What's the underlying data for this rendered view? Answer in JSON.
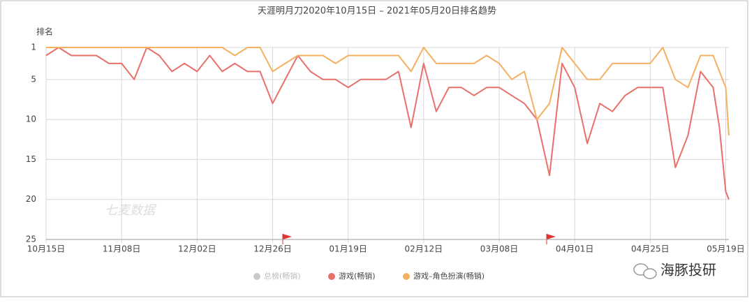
{
  "chart_data": {
    "type": "line",
    "title": "天涯明月刀2020年10月15日 – 2021年05月20日排名趋势",
    "y_label": "排名",
    "watermark": "七麦数据",
    "brand": "海豚投研",
    "x": [
      "2020-10-15",
      "2020-10-19",
      "2020-10-23",
      "2020-10-27",
      "2020-10-31",
      "2020-11-04",
      "2020-11-08",
      "2020-11-12",
      "2020-11-16",
      "2020-11-20",
      "2020-11-24",
      "2020-11-28",
      "2020-12-02",
      "2020-12-06",
      "2020-12-10",
      "2020-12-14",
      "2020-12-18",
      "2020-12-22",
      "2020-12-26",
      "2020-12-30",
      "2021-01-03",
      "2021-01-07",
      "2021-01-11",
      "2021-01-15",
      "2021-01-19",
      "2021-01-23",
      "2021-01-27",
      "2021-01-31",
      "2021-02-04",
      "2021-02-08",
      "2021-02-12",
      "2021-02-16",
      "2021-02-20",
      "2021-02-24",
      "2021-02-28",
      "2021-03-04",
      "2021-03-08",
      "2021-03-12",
      "2021-03-16",
      "2021-03-20",
      "2021-03-24",
      "2021-03-28",
      "2021-04-01",
      "2021-04-05",
      "2021-04-09",
      "2021-04-13",
      "2021-04-17",
      "2021-04-21",
      "2021-04-25",
      "2021-04-29",
      "2021-05-03",
      "2021-05-07",
      "2021-05-11",
      "2021-05-15",
      "2021-05-17",
      "2021-05-19",
      "2021-05-20"
    ],
    "series": [
      {
        "name": "总榜(畅销)",
        "color": "#c8c8c8",
        "visible": false,
        "values": [
          null,
          null,
          null,
          null,
          null,
          null,
          null,
          null,
          null,
          null,
          null,
          null,
          null,
          null,
          null,
          null,
          null,
          null,
          null,
          null,
          null,
          null,
          null,
          null,
          null,
          null,
          null,
          null,
          null,
          null,
          null,
          null,
          null,
          null,
          null,
          null,
          null,
          null,
          null,
          null,
          null,
          null,
          null,
          null,
          null,
          null,
          null,
          null,
          null,
          null,
          null,
          null,
          null,
          null,
          null,
          null,
          null
        ]
      },
      {
        "name": "游戏(畅销)",
        "color": "#e8706a",
        "visible": true,
        "values": [
          2,
          1,
          2,
          2,
          2,
          3,
          3,
          5,
          1,
          2,
          4,
          3,
          4,
          2,
          4,
          3,
          4,
          4,
          8,
          5,
          2,
          4,
          5,
          5,
          6,
          5,
          5,
          5,
          4,
          11,
          3,
          9,
          6,
          6,
          7,
          6,
          6,
          7,
          8,
          10,
          17,
          3,
          6,
          13,
          8,
          9,
          7,
          6,
          6,
          6,
          16,
          12,
          4,
          6,
          11,
          19,
          20
        ]
      },
      {
        "name": "游戏–角色扮演(畅销)",
        "color": "#f5b062",
        "visible": true,
        "values": [
          1,
          1,
          1,
          1,
          1,
          1,
          1,
          1,
          1,
          1,
          1,
          1,
          1,
          1,
          1,
          2,
          1,
          1,
          4,
          3,
          2,
          2,
          2,
          3,
          2,
          2,
          2,
          2,
          2,
          4,
          1,
          3,
          3,
          3,
          3,
          2,
          3,
          5,
          4,
          10,
          8,
          1,
          3,
          5,
          5,
          3,
          3,
          3,
          3,
          1,
          5,
          6,
          2,
          2,
          4,
          6,
          12
        ]
      }
    ],
    "xlim": [
      "2020-10-15",
      "2021-05-20"
    ],
    "xticks": [
      {
        "value": "2020-10-15",
        "label": "10月15日"
      },
      {
        "value": "2020-11-08",
        "label": "11月08日"
      },
      {
        "value": "2020-12-02",
        "label": "12月02日"
      },
      {
        "value": "2020-12-26",
        "label": "12月26日"
      },
      {
        "value": "2021-01-19",
        "label": "01月19日"
      },
      {
        "value": "2021-02-12",
        "label": "02月12日"
      },
      {
        "value": "2021-03-08",
        "label": "03月08日"
      },
      {
        "value": "2021-04-01",
        "label": "04月01日"
      },
      {
        "value": "2021-04-25",
        "label": "04月25日"
      },
      {
        "value": "2021-05-19",
        "label": "05月19日"
      }
    ],
    "ylim": [
      25,
      1
    ],
    "yticks": [
      1,
      5,
      10,
      15,
      20,
      25
    ],
    "grid": true
  }
}
